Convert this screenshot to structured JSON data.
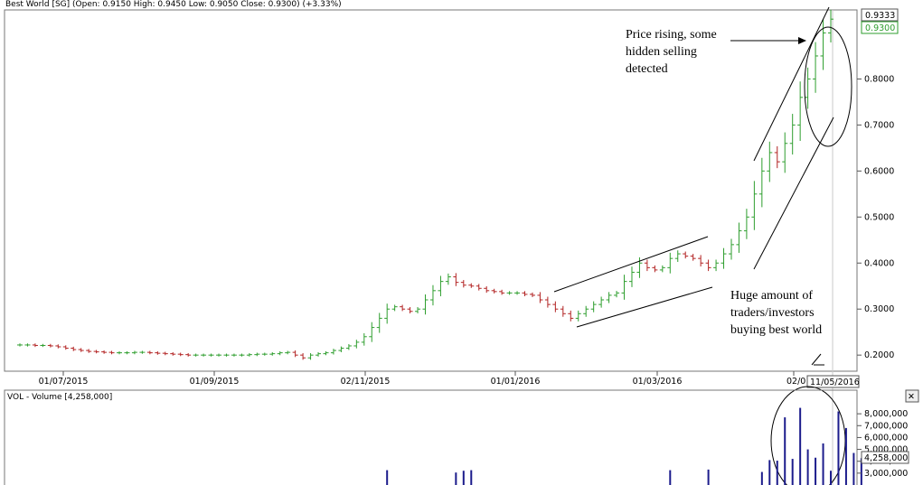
{
  "header": {
    "title": "Best World [SG] (Open: 0.9150   High: 0.9450   Low: 0.9050   Close: 0.9300)  (+3.33%)"
  },
  "price_labels": {
    "high_marker": "0.9333",
    "last_marker": "0.9300",
    "date_marker": "11/05/2016"
  },
  "volume_panel": {
    "title": "VOL - Volume [4,258,000]",
    "last_marker": "4,258,000",
    "close_button": "✕"
  },
  "annotations": {
    "top": [
      "Price rising, some",
      "hidden selling",
      "detected"
    ],
    "bottom": [
      "Huge amount of",
      "traders/investors",
      "buying best world"
    ]
  },
  "colors": {
    "up": "#2e9e2e",
    "down": "#b22222",
    "volume": "#1c1c8c",
    "last_price": "#2e9e2e"
  },
  "chart_data": [
    {
      "type": "candlestick",
      "title": "Best World [SG]",
      "open": 0.915,
      "high": 0.945,
      "low": 0.905,
      "close": 0.93,
      "change_pct": 3.33,
      "x_tick_labels": [
        "01/07/2015",
        "01/09/2015",
        "02/11/2015",
        "01/01/2016",
        "01/03/2016",
        "02/0"
      ],
      "y_ticks": [
        0.2,
        0.3,
        0.4,
        0.5,
        0.6,
        0.7,
        0.8
      ],
      "y_tick_labels": [
        "0.2000",
        "0.3000",
        "0.4000",
        "0.5000",
        "0.6000",
        "0.7000",
        "0.8000"
      ],
      "ylim": [
        0.165,
        0.95
      ],
      "series_close": [
        0.222,
        0.222,
        0.221,
        0.221,
        0.22,
        0.218,
        0.215,
        0.212,
        0.21,
        0.208,
        0.207,
        0.206,
        0.205,
        0.205,
        0.205,
        0.206,
        0.206,
        0.205,
        0.204,
        0.203,
        0.202,
        0.201,
        0.2,
        0.2,
        0.2,
        0.2,
        0.2,
        0.2,
        0.2,
        0.2,
        0.201,
        0.202,
        0.202,
        0.203,
        0.205,
        0.206,
        0.2,
        0.194,
        0.2,
        0.203,
        0.205,
        0.21,
        0.215,
        0.22,
        0.228,
        0.24,
        0.26,
        0.28,
        0.3,
        0.305,
        0.3,
        0.295,
        0.3,
        0.32,
        0.34,
        0.36,
        0.37,
        0.358,
        0.352,
        0.35,
        0.345,
        0.34,
        0.338,
        0.335,
        0.335,
        0.335,
        0.332,
        0.33,
        0.32,
        0.31,
        0.3,
        0.29,
        0.28,
        0.29,
        0.3,
        0.31,
        0.32,
        0.33,
        0.335,
        0.36,
        0.38,
        0.4,
        0.39,
        0.385,
        0.39,
        0.41,
        0.42,
        0.415,
        0.41,
        0.4,
        0.39,
        0.4,
        0.42,
        0.44,
        0.47,
        0.5,
        0.55,
        0.6,
        0.64,
        0.62,
        0.66,
        0.7,
        0.76,
        0.8,
        0.85,
        0.9,
        0.93
      ]
    },
    {
      "type": "bar",
      "title": "VOL - Volume",
      "last_value": 4258000,
      "y_ticks": [
        3000000,
        4000000,
        5000000,
        6000000,
        7000000,
        8000000
      ],
      "y_tick_labels": [
        "3,000,000",
        "4,000,000",
        "5,000,000",
        "6,000,000",
        "7,000,000",
        "8,000,000"
      ],
      "ylim": [
        2000000,
        9000000
      ],
      "spikes": [
        {
          "i": 48,
          "v": 3250000
        },
        {
          "i": 57,
          "v": 3050000
        },
        {
          "i": 58,
          "v": 3200000
        },
        {
          "i": 59,
          "v": 3250000
        },
        {
          "i": 85,
          "v": 3250000
        },
        {
          "i": 90,
          "v": 3300000
        },
        {
          "i": 97,
          "v": 3100000
        },
        {
          "i": 98,
          "v": 4100000
        },
        {
          "i": 99,
          "v": 4050000
        },
        {
          "i": 100,
          "v": 7700000
        },
        {
          "i": 101,
          "v": 4200000
        },
        {
          "i": 102,
          "v": 8500000
        },
        {
          "i": 103,
          "v": 5000000
        },
        {
          "i": 104,
          "v": 4300000
        },
        {
          "i": 105,
          "v": 5500000
        },
        {
          "i": 106,
          "v": 3200000
        },
        {
          "i": 107,
          "v": 8200000
        },
        {
          "i": 108,
          "v": 6800000
        },
        {
          "i": 109,
          "v": 4700000
        },
        {
          "i": 110,
          "v": 4258000
        }
      ]
    }
  ]
}
